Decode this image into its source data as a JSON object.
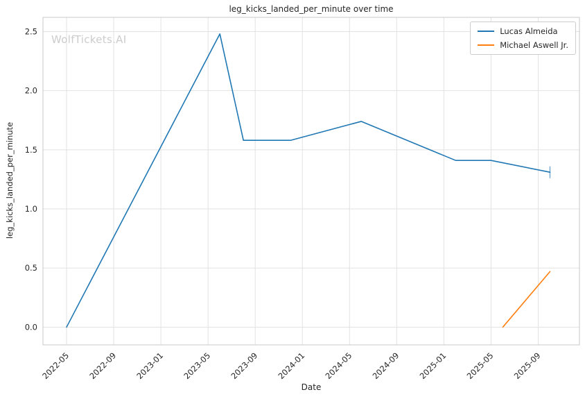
{
  "watermark": "WolfTickets.AI",
  "chart_data": {
    "type": "line",
    "title": "leg_kicks_landed_per_minute over time",
    "xlabel": "Date",
    "ylabel": "leg_kicks_landed_per_minute",
    "x_ticks": [
      "2022-05",
      "2022-09",
      "2023-01",
      "2023-05",
      "2023-09",
      "2024-01",
      "2024-05",
      "2024-09",
      "2025-01",
      "2025-05",
      "2025-09"
    ],
    "y_ticks": [
      "0.0",
      "0.5",
      "1.0",
      "1.5",
      "2.0",
      "2.5"
    ],
    "ylim": [
      -0.15,
      2.62
    ],
    "grid": true,
    "legend_position": "upper right",
    "series": [
      {
        "name": "Lucas Almeida",
        "color": "#1f77b4",
        "points": [
          [
            "2022-05",
            0.0
          ],
          [
            "2023-06",
            2.48
          ],
          [
            "2023-08",
            1.58
          ],
          [
            "2023-12",
            1.58
          ],
          [
            "2024-06",
            1.74
          ],
          [
            "2025-02",
            1.41
          ],
          [
            "2025-05",
            1.41
          ],
          [
            "2025-10",
            1.31
          ]
        ],
        "last_point_error": 0.05
      },
      {
        "name": "Michael Aswell Jr.",
        "color": "#ff7f0e",
        "points": [
          [
            "2025-06",
            0.0
          ],
          [
            "2025-10",
            0.47
          ]
        ]
      }
    ]
  }
}
